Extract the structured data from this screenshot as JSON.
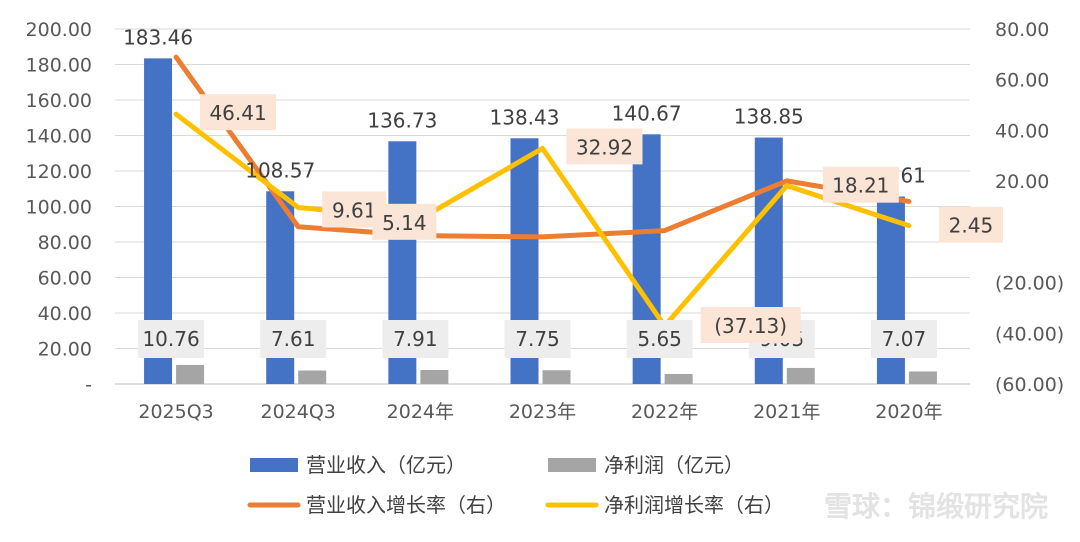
{
  "chart_data": {
    "type": "bar",
    "categories": [
      "2025Q3",
      "2024Q3",
      "2024年",
      "2023年",
      "2022年",
      "2021年",
      "2020年"
    ],
    "series": [
      {
        "name": "营业收入（亿元）",
        "kind": "bar",
        "axis": "left",
        "color": "#4472C4",
        "values": [
          183.46,
          108.57,
          136.73,
          138.43,
          140.67,
          138.85,
          105.61
        ],
        "labels": [
          "183.46",
          "108.57",
          "136.73",
          "138.43",
          "140.67",
          "138.85",
          "105.61"
        ]
      },
      {
        "name": "净利润（亿元）",
        "kind": "bar",
        "axis": "left",
        "color": "#A5A5A5",
        "values": [
          10.76,
          7.61,
          7.91,
          7.75,
          5.65,
          9.05,
          7.07
        ],
        "labels": [
          "10.76",
          "7.61",
          "7.91",
          "7.75",
          "5.65",
          "9.05",
          "7.07"
        ]
      },
      {
        "name": "营业收入增长率（右）",
        "kind": "line",
        "axis": "right",
        "color": "#ED7D31",
        "values": [
          68.9,
          2.0,
          -1.5,
          -2.0,
          0.5,
          20.1,
          12.0
        ]
      },
      {
        "name": "净利润增长率（右）",
        "kind": "line",
        "axis": "right",
        "color": "#FFC000",
        "values": [
          46.41,
          9.61,
          5.14,
          32.92,
          -37.13,
          18.21,
          2.45
        ],
        "labels": [
          "46.41",
          "9.61",
          "5.14",
          "32.92",
          "(37.13)",
          "18.21",
          "2.45"
        ]
      }
    ],
    "y_left": {
      "min": 0,
      "max": 200,
      "step": 20,
      "tick_labels": [
        "-",
        "20.00",
        "40.00",
        "60.00",
        "80.00",
        "100.00",
        "120.00",
        "140.00",
        "160.00",
        "180.00",
        "200.00"
      ]
    },
    "y_right": {
      "min": -60,
      "max": 80,
      "step": 20,
      "tick_labels": [
        "(60.00)",
        "(40.00)",
        "(20.00)",
        "-",
        "20.00",
        "40.00",
        "60.00",
        "80.00"
      ]
    },
    "grid": true,
    "legend_position": "bottom",
    "label_colors": {
      "line_label_bg": "#FBE5D6",
      "bar_label_bg": "#EDEDED"
    }
  },
  "watermark": "雪球：锦缎研究院"
}
